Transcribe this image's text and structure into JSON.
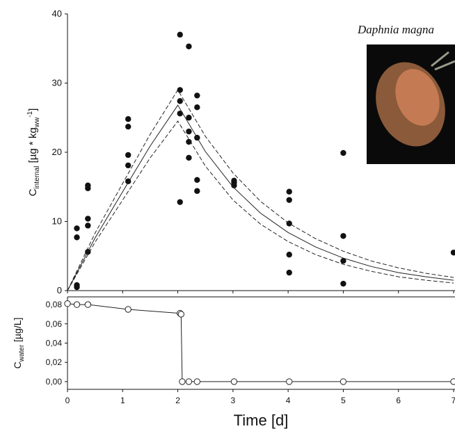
{
  "chart_data": [
    {
      "type": "scatter",
      "annotation": "Daphnia magna",
      "ylabel_parts": [
        "C",
        "internal",
        " [µg * kg",
        "ww",
        "-1",
        "]"
      ],
      "xlim": [
        0,
        7
      ],
      "ylim": [
        0,
        40
      ],
      "xticks": [
        0,
        1,
        2,
        3,
        4,
        5,
        6,
        7
      ],
      "yticks": [
        0,
        10,
        20,
        30,
        40
      ],
      "series": [
        {
          "style": "points",
          "color": "#111111",
          "x": [
            0.17,
            0.17,
            0.17,
            0.17,
            0.37,
            0.37,
            0.37,
            0.37,
            0.37,
            1.1,
            1.1,
            1.1,
            1.1,
            1.1,
            2.04,
            2.04,
            2.04,
            2.04,
            2.04,
            2.2,
            2.2,
            2.2,
            2.2,
            2.2,
            2.35,
            2.35,
            2.35,
            2.35,
            2.35,
            3.02,
            3.02,
            3.02,
            4.02,
            4.02,
            4.02,
            4.02,
            4.02,
            5.0,
            5.0,
            5.0,
            5.0,
            7.0
          ],
          "values": [
            9.0,
            7.7,
            0.8,
            0.5,
            15.2,
            14.8,
            10.4,
            9.4,
            5.6,
            24.8,
            23.7,
            19.6,
            18.1,
            15.8,
            37.0,
            29.0,
            27.4,
            25.6,
            12.8,
            35.3,
            25.0,
            23.0,
            21.5,
            19.2,
            28.2,
            26.5,
            22.1,
            16.0,
            14.4,
            15.9,
            15.6,
            15.2,
            14.3,
            13.1,
            9.7,
            5.2,
            2.6,
            19.9,
            7.9,
            4.3,
            1.0,
            5.5
          ]
        },
        {
          "style": "solid",
          "color": "#222222",
          "x": [
            0,
            0.5,
            1,
            1.5,
            2,
            2.5,
            3,
            3.5,
            4,
            4.5,
            5,
            5.5,
            6,
            6.5,
            7
          ],
          "values": [
            0,
            7.6,
            14.3,
            20.9,
            26.8,
            20.1,
            15.0,
            11.2,
            8.4,
            6.3,
            4.7,
            3.5,
            2.6,
            2.0,
            1.5
          ]
        },
        {
          "style": "dashed",
          "color": "#222222",
          "x": [
            0,
            0.5,
            1,
            1.5,
            2,
            2.5,
            3,
            3.5,
            4,
            4.5,
            5,
            5.5,
            6,
            6.5,
            7
          ],
          "values": [
            0,
            8.3,
            15.5,
            22.6,
            29.0,
            22.3,
            17.0,
            12.9,
            9.8,
            7.5,
            5.7,
            4.3,
            3.3,
            2.5,
            1.9
          ]
        },
        {
          "style": "dashed",
          "color": "#222222",
          "x": [
            0,
            0.5,
            1,
            1.5,
            2,
            2.5,
            3,
            3.5,
            4,
            4.5,
            5,
            5.5,
            6,
            6.5,
            7
          ],
          "values": [
            0,
            7.0,
            13.1,
            19.2,
            24.5,
            18.0,
            13.1,
            9.6,
            7.1,
            5.2,
            3.8,
            2.8,
            2.0,
            1.5,
            1.1
          ]
        }
      ]
    },
    {
      "type": "line",
      "xlabel": "Time [d]",
      "ylabel_parts": [
        "C",
        "water",
        " [µg/L]"
      ],
      "xlim": [
        0,
        7
      ],
      "ylim": [
        -0.008,
        0.088
      ],
      "xticks": [
        0,
        1,
        2,
        3,
        4,
        5,
        6,
        7
      ],
      "yticks": [
        {
          "value": 0,
          "label": "0,00"
        },
        {
          "value": 0.02,
          "label": "0,02"
        },
        {
          "value": 0.04,
          "label": "0,04"
        },
        {
          "value": 0.06,
          "label": "0,06"
        },
        {
          "value": 0.08,
          "label": "0,08"
        }
      ],
      "series": [
        {
          "style": "open-points",
          "color": "#222222",
          "x": [
            0,
            0.17,
            0.37,
            1.1,
            2.04,
            2.06,
            2.08,
            2.2,
            2.35,
            3.02,
            4.02,
            5.0,
            7.0
          ],
          "values": [
            0.081,
            0.08,
            0.08,
            0.075,
            0.071,
            0.07,
            0,
            0,
            0,
            0,
            0,
            0,
            0
          ]
        }
      ]
    }
  ]
}
